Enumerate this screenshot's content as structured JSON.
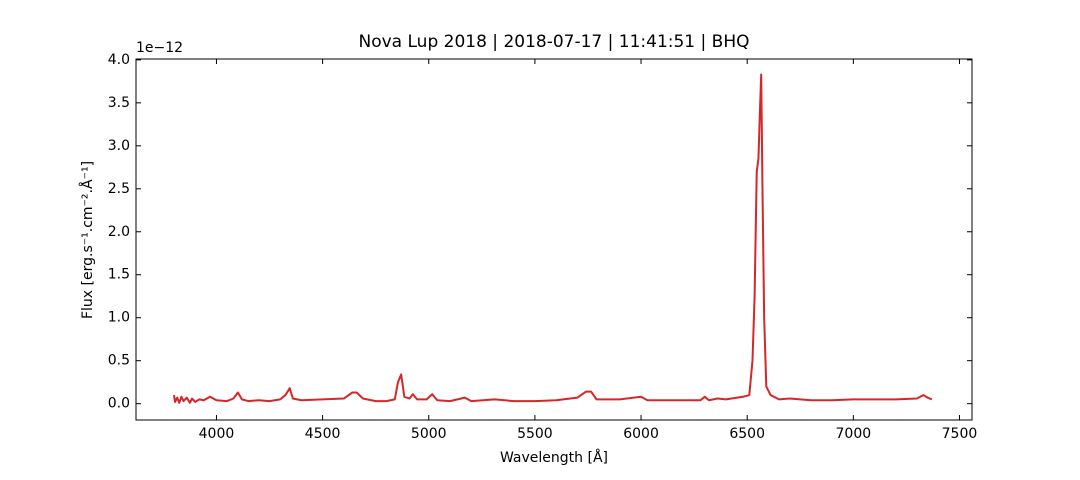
{
  "chart_data": {
    "type": "line",
    "title": "Nova Lup 2018 | 2018-07-17 | 11:41:51 | BHQ",
    "x_label": "Wavelength [Å]",
    "y_label": "Flux [erg.s⁻¹.cm⁻².Å⁻¹]",
    "y_offset_label": "1e−12",
    "xlim": [
      3621,
      7559
    ],
    "ylim": [
      -0.19,
      4.01
    ],
    "xticks": [
      4000,
      4500,
      5000,
      5500,
      6000,
      6500,
      7000,
      7500
    ],
    "yticks": [
      {
        "value": 0,
        "label": "0.0"
      },
      {
        "value": 0.5,
        "label": "0.5"
      },
      {
        "value": 1,
        "label": "1.0"
      },
      {
        "value": 1.5,
        "label": "1.5"
      },
      {
        "value": 2,
        "label": "2.0"
      },
      {
        "value": 2.5,
        "label": "2.5"
      },
      {
        "value": 3,
        "label": "3.0"
      },
      {
        "value": 3.5,
        "label": "3.5"
      },
      {
        "value": 4,
        "label": "4.0"
      }
    ],
    "series": [
      {
        "color": "#d62728",
        "x": [
          3800,
          3805,
          3815,
          3825,
          3835,
          3845,
          3860,
          3875,
          3885,
          3900,
          3920,
          3940,
          3970,
          4000,
          4050,
          4080,
          4101,
          4120,
          4150,
          4200,
          4250,
          4300,
          4325,
          4345,
          4360,
          4400,
          4500,
          4600,
          4640,
          4660,
          4690,
          4750,
          4800,
          4840,
          4855,
          4870,
          4885,
          4910,
          4925,
          4945,
          4990,
          5016,
          5040,
          5100,
          5170,
          5200,
          5310,
          5400,
          5500,
          5600,
          5700,
          5740,
          5765,
          5790,
          5900,
          6000,
          6030,
          6150,
          6280,
          6300,
          6320,
          6360,
          6400,
          6480,
          6510,
          6525,
          6535,
          6545,
          6553,
          6560,
          6566,
          6572,
          6580,
          6590,
          6610,
          6650,
          6700,
          6800,
          6900,
          7000,
          7100,
          7200,
          7300,
          7330,
          7350,
          7370
        ],
        "values": [
          0.1,
          0.02,
          0.07,
          0.01,
          0.08,
          0.03,
          0.07,
          0.01,
          0.06,
          0.02,
          0.05,
          0.04,
          0.08,
          0.04,
          0.03,
          0.06,
          0.13,
          0.05,
          0.03,
          0.04,
          0.03,
          0.05,
          0.1,
          0.18,
          0.06,
          0.04,
          0.05,
          0.06,
          0.13,
          0.13,
          0.06,
          0.03,
          0.03,
          0.05,
          0.25,
          0.34,
          0.08,
          0.06,
          0.11,
          0.05,
          0.05,
          0.11,
          0.04,
          0.03,
          0.07,
          0.03,
          0.05,
          0.03,
          0.03,
          0.04,
          0.07,
          0.14,
          0.14,
          0.05,
          0.05,
          0.08,
          0.04,
          0.04,
          0.04,
          0.08,
          0.04,
          0.06,
          0.05,
          0.08,
          0.1,
          0.5,
          1.25,
          2.7,
          2.85,
          3.4,
          3.83,
          2.5,
          1.0,
          0.2,
          0.1,
          0.05,
          0.06,
          0.04,
          0.04,
          0.05,
          0.05,
          0.05,
          0.06,
          0.1,
          0.07,
          0.05
        ]
      }
    ]
  }
}
